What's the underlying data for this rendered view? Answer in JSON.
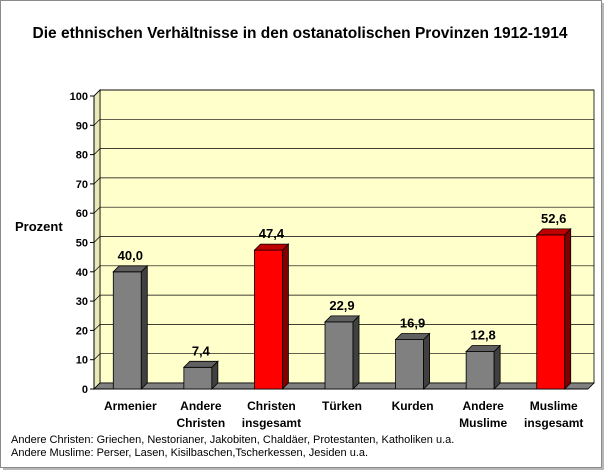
{
  "chart_data": {
    "type": "bar",
    "title": "Die ethnischen Verhältnisse in den ostanatolischen Provinzen 1912-1914",
    "ylabel": "Prozent",
    "xlabel": "",
    "ylim": [
      0,
      100
    ],
    "yticks": [
      0,
      10,
      20,
      30,
      40,
      50,
      60,
      70,
      80,
      90,
      100
    ],
    "grid": true,
    "categories": [
      [
        "Armenier"
      ],
      [
        "Andere",
        "Christen"
      ],
      [
        "Christen",
        "insgesamt"
      ],
      [
        "Türken"
      ],
      [
        "Kurden"
      ],
      [
        "Andere",
        "Muslime"
      ],
      [
        "Muslime",
        "insgesamt"
      ]
    ],
    "values": [
      40.0,
      7.4,
      47.4,
      22.9,
      16.9,
      12.8,
      52.6
    ],
    "value_labels": [
      "40,0",
      "7,4",
      "47,4",
      "22,9",
      "16,9",
      "12,8",
      "52,6"
    ],
    "bar_colors": [
      "#808080",
      "#808080",
      "#ff0000",
      "#808080",
      "#808080",
      "#808080",
      "#ff0000"
    ]
  },
  "colors": {
    "plot_wall": "#ffffcc",
    "plot_floor": "#808080",
    "gray_bar": "#808080",
    "red_bar": "#ff0000"
  },
  "footnotes": {
    "line1": "Andere Christen: Griechen, Nestorianer, Jakobiten, Chaldäer, Protestanten, Katholiken  u.a.",
    "line2": "Andere Muslime: Perser, Lasen, Kisilbaschen,Tscherkessen, Jesiden  u.a."
  }
}
